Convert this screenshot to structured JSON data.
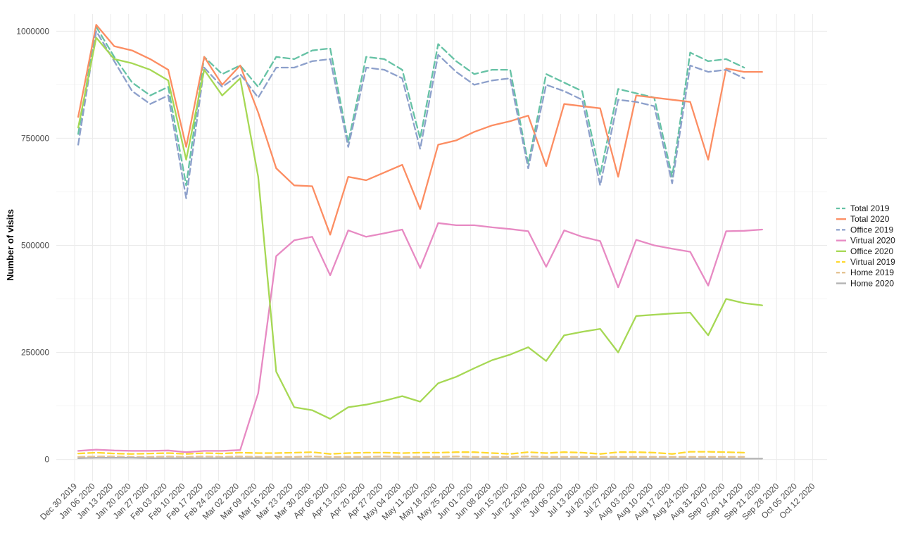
{
  "chart_data": {
    "type": "line",
    "title": "",
    "xlabel": "",
    "ylabel": "Number of visits",
    "ylim": [
      -50000,
      1040000
    ],
    "yticks": [
      0,
      250000,
      500000,
      750000,
      1000000
    ],
    "ytick_labels": [
      "0",
      "250000",
      "500000",
      "750000",
      "1000000"
    ],
    "x_ticks": [
      "Dec 30 2019",
      "Jan 06 2020",
      "Jan 13 2020",
      "Jan 20 2020",
      "Jan 27 2020",
      "Feb 03 2020",
      "Feb 10 2020",
      "Feb 17 2020",
      "Feb 24 2020",
      "Mar 02 2020",
      "Mar 09 2020",
      "Mar 16 2020",
      "Mar 23 2020",
      "Mar 30 2020",
      "Apr 06 2020",
      "Apr 13 2020",
      "Apr 20 2020",
      "Apr 27 2020",
      "May 04 2020",
      "May 11 2020",
      "May 18 2020",
      "May 25 2020",
      "Jun 01 2020",
      "Jun 08 2020",
      "Jun 15 2020",
      "Jun 22 2020",
      "Jun 29 2020",
      "Jul 06 2020",
      "Jul 13 2020",
      "Jul 20 2020",
      "Jul 27 2020",
      "Aug 03 2020",
      "Aug 10 2020",
      "Aug 17 2020",
      "Aug 24 2020",
      "Aug 31 2020",
      "Sep 07 2020",
      "Sep 14 2020",
      "Sep 21 2020",
      "Sep 28 2020",
      "Oct 05 2020",
      "Oct 12 2020"
    ],
    "x_data_start": 0.2,
    "legend_position": "right",
    "grid": true,
    "series": [
      {
        "name": "Total 2019",
        "color": "#66c2a5",
        "dash": true,
        "values": [
          760000,
          1010000,
          940000,
          880000,
          850000,
          870000,
          640000,
          940000,
          900000,
          920000,
          870000,
          940000,
          935000,
          955000,
          960000,
          740000,
          940000,
          935000,
          910000,
          750000,
          970000,
          930000,
          900000,
          910000,
          910000,
          690000,
          900000,
          880000,
          860000,
          665000,
          865000,
          855000,
          845000,
          660000,
          950000,
          930000,
          935000,
          915000
        ]
      },
      {
        "name": "Total 2020",
        "color": "#fc8d62",
        "dash": false,
        "values": [
          800000,
          1015000,
          965000,
          955000,
          935000,
          910000,
          730000,
          940000,
          875000,
          920000,
          810000,
          680000,
          640000,
          638000,
          525000,
          660000,
          652000,
          670000,
          688000,
          585000,
          735000,
          745000,
          765000,
          780000,
          790000,
          803000,
          685000,
          830000,
          825000,
          820000,
          660000,
          850000,
          845000,
          840000,
          835000,
          700000,
          913000,
          905000,
          905000
        ]
      },
      {
        "name": "Office 2019",
        "color": "#8da0cb",
        "dash": true,
        "values": [
          735000,
          1000000,
          930000,
          860000,
          830000,
          850000,
          610000,
          915000,
          870000,
          900000,
          845000,
          915000,
          915000,
          930000,
          935000,
          730000,
          915000,
          910000,
          890000,
          725000,
          945000,
          905000,
          875000,
          885000,
          890000,
          680000,
          875000,
          860000,
          840000,
          640000,
          840000,
          835000,
          825000,
          645000,
          920000,
          905000,
          910000,
          890000
        ]
      },
      {
        "name": "Virtual 2020",
        "color": "#e78ac3",
        "dash": false,
        "values": [
          20000,
          23000,
          21000,
          20000,
          20000,
          21000,
          17000,
          20000,
          20000,
          22000,
          155000,
          475000,
          512000,
          520000,
          430000,
          535000,
          520000,
          528000,
          537000,
          447000,
          552000,
          547000,
          547000,
          542000,
          538000,
          533000,
          450000,
          535000,
          520000,
          510000,
          402000,
          513000,
          500000,
          492000,
          485000,
          406000,
          533000,
          534000,
          537000
        ]
      },
      {
        "name": "Office 2020",
        "color": "#a6d854",
        "dash": false,
        "values": [
          775000,
          985000,
          935000,
          925000,
          910000,
          885000,
          700000,
          910000,
          850000,
          890000,
          660000,
          205000,
          122000,
          115000,
          95000,
          122000,
          128000,
          137000,
          148000,
          135000,
          178000,
          193000,
          213000,
          232000,
          245000,
          262000,
          230000,
          290000,
          298000,
          305000,
          250000,
          335000,
          338000,
          341000,
          343000,
          290000,
          375000,
          365000,
          360000
        ]
      },
      {
        "name": "Virtual 2019",
        "color": "#ffd92f",
        "dash": true,
        "values": [
          14000,
          16000,
          14000,
          13000,
          14000,
          15000,
          13000,
          15000,
          14000,
          16000,
          15000,
          15000,
          16000,
          17000,
          13000,
          15000,
          16000,
          16000,
          15000,
          16000,
          16000,
          17000,
          17000,
          15000,
          13000,
          17000,
          15000,
          17000,
          16000,
          13000,
          17000,
          17000,
          16000,
          13000,
          18000,
          18000,
          17000,
          16000
        ]
      },
      {
        "name": "Home 2019",
        "color": "#e5c494",
        "dash": true,
        "values": [
          6000,
          7000,
          7000,
          6000,
          6000,
          7000,
          6000,
          7000,
          6000,
          7000,
          6000,
          6000,
          6000,
          7000,
          6000,
          6000,
          6000,
          7000,
          6000,
          6000,
          6000,
          7000,
          6000,
          6000,
          6000,
          7000,
          6000,
          6000,
          6000,
          6000,
          6000,
          6000,
          6000,
          6000,
          6000,
          6000,
          6000,
          6000
        ]
      },
      {
        "name": "Home 2020",
        "color": "#b3b3b3",
        "dash": false,
        "values": [
          3000,
          4000,
          4000,
          4000,
          3000,
          3000,
          3000,
          3000,
          3000,
          3000,
          3000,
          2000,
          2000,
          2000,
          2000,
          2000,
          2000,
          2000,
          2000,
          2000,
          2000,
          2000,
          2000,
          2000,
          2000,
          2000,
          2000,
          2000,
          2000,
          2000,
          2000,
          2000,
          2000,
          2000,
          2000,
          2000,
          2000,
          2000,
          2000
        ]
      }
    ]
  }
}
